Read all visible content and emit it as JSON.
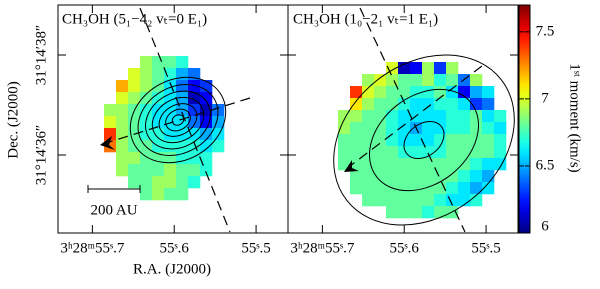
{
  "chart_data": {
    "type": "image",
    "panels": [
      {
        "title": "CH₃OH (5₁−4₂ vₜ=0 E₁)",
        "pixels": [
          [
            null,
            null,
            null,
            6.9,
            6.8,
            6.8,
            6.7,
            null,
            null,
            null
          ],
          [
            null,
            null,
            7.0,
            6.9,
            6.8,
            6.7,
            6.5,
            6.4,
            null,
            null
          ],
          [
            null,
            7.2,
            7.0,
            6.9,
            6.8,
            6.6,
            6.4,
            6.2,
            6.3,
            null
          ],
          [
            null,
            7.0,
            6.9,
            6.8,
            6.7,
            6.6,
            6.5,
            6.1,
            6.2,
            null
          ],
          [
            6.9,
            6.9,
            6.8,
            6.7,
            6.6,
            6.6,
            6.5,
            6.3,
            6.1,
            6.4
          ],
          [
            7.0,
            6.9,
            6.8,
            6.7,
            6.6,
            6.6,
            6.6,
            6.4,
            6.2,
            6.5
          ],
          [
            7.4,
            6.9,
            6.8,
            6.7,
            6.7,
            6.6,
            6.6,
            6.6,
            6.5,
            6.6
          ],
          [
            7.3,
            6.9,
            6.8,
            6.8,
            6.7,
            6.7,
            6.7,
            6.7,
            6.6,
            6.7
          ],
          [
            null,
            6.9,
            6.9,
            6.8,
            6.8,
            6.8,
            6.7,
            6.7,
            6.7,
            null
          ],
          [
            null,
            6.9,
            6.8,
            6.8,
            6.8,
            6.9,
            6.8,
            6.8,
            6.7,
            null
          ],
          [
            null,
            null,
            6.8,
            6.8,
            6.9,
            6.9,
            6.8,
            6.7,
            null,
            null
          ],
          [
            null,
            null,
            null,
            6.8,
            6.9,
            6.8,
            6.8,
            null,
            null,
            null
          ]
        ]
      },
      {
        "title": "CH₃OH (1₀−2₁ vₜ=1 E₁)",
        "pixels": [
          [
            null,
            null,
            null,
            null,
            7.0,
            6.1,
            6.2,
            6.9,
            6.3,
            6.9,
            null,
            null,
            null,
            null
          ],
          [
            null,
            null,
            6.9,
            7.0,
            6.9,
            6.8,
            6.8,
            6.9,
            6.7,
            6.8,
            6.4,
            6.9,
            null,
            null
          ],
          [
            null,
            7.4,
            7.0,
            6.9,
            6.8,
            6.8,
            6.7,
            6.7,
            6.8,
            6.6,
            6.2,
            6.5,
            6.6,
            null
          ],
          [
            null,
            7.1,
            6.9,
            6.8,
            6.8,
            6.7,
            6.6,
            6.6,
            6.7,
            6.7,
            6.6,
            6.3,
            6.4,
            null
          ],
          [
            6.9,
            6.9,
            6.8,
            6.8,
            6.7,
            6.6,
            6.6,
            6.6,
            6.6,
            6.7,
            6.7,
            6.8,
            6.6,
            6.7
          ],
          [
            6.9,
            6.8,
            6.8,
            6.8,
            6.7,
            6.6,
            6.5,
            6.6,
            6.6,
            6.7,
            6.7,
            6.8,
            6.7,
            6.6
          ],
          [
            6.8,
            6.8,
            6.8,
            6.8,
            6.7,
            6.6,
            6.6,
            6.6,
            6.7,
            6.8,
            6.8,
            6.8,
            6.8,
            6.7
          ],
          [
            6.8,
            6.8,
            6.8,
            6.8,
            6.8,
            6.7,
            6.7,
            6.7,
            6.7,
            6.8,
            6.8,
            6.8,
            6.8,
            6.7
          ],
          [
            6.8,
            6.8,
            6.8,
            6.8,
            6.8,
            6.8,
            6.8,
            6.8,
            6.8,
            6.8,
            6.8,
            6.7,
            6.6,
            6.6
          ],
          [
            null,
            6.8,
            6.8,
            6.8,
            6.8,
            6.8,
            6.8,
            6.8,
            6.8,
            6.8,
            6.7,
            6.6,
            6.5,
            null
          ],
          [
            null,
            6.8,
            6.8,
            6.8,
            6.8,
            6.8,
            6.8,
            6.8,
            6.8,
            6.7,
            6.6,
            6.5,
            6.6,
            null
          ],
          [
            null,
            null,
            6.8,
            6.8,
            6.8,
            6.8,
            6.8,
            6.8,
            6.7,
            6.6,
            6.6,
            6.7,
            null,
            null
          ],
          [
            null,
            null,
            null,
            null,
            6.8,
            6.8,
            6.8,
            6.7,
            6.8,
            6.8,
            null,
            null,
            null,
            null
          ]
        ]
      }
    ],
    "xlabel": "R.A. (J2000)",
    "ylabel": "Dec. (J2000)",
    "xlim": [
      55.742,
      55.461
    ],
    "xticks": [
      {
        "value": 55.7,
        "label": "3ʰ28ᵐ55ˢ.7"
      },
      {
        "value": 55.6,
        "label": "55ˢ.6"
      },
      {
        "value": 55.5,
        "label": "55ˢ.5"
      }
    ],
    "ylim": [
      34.44,
      39.0
    ],
    "yticks": [
      {
        "value": 38,
        "label": "31°14′38″"
      },
      {
        "value": 36,
        "label": "31°14′36″"
      }
    ],
    "colorbar": {
      "label": "1ˢᵗ moment (km/s)",
      "lim": [
        6,
        7.7
      ],
      "ticks": [
        6,
        6.5,
        7,
        7.5
      ]
    },
    "scale_bar_label": "200 AU"
  }
}
